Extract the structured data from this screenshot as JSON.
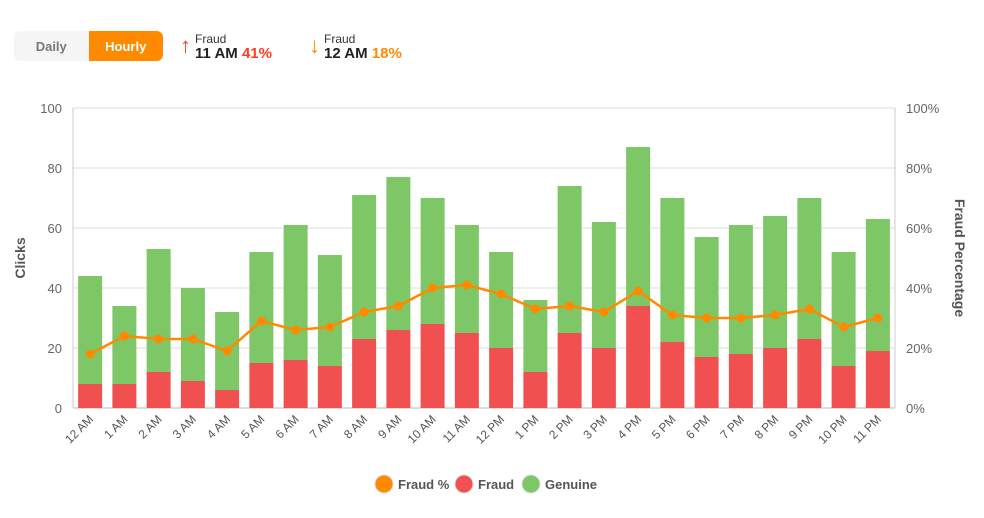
{
  "toggle": {
    "daily": "Daily",
    "hourly": "Hourly",
    "active": "hourly"
  },
  "stats": [
    {
      "icon": "arrow-up-icon",
      "label": "Fraud",
      "time": "11 AM",
      "value": "41%",
      "color": "#ff3b1f"
    },
    {
      "icon": "arrow-down-icon",
      "label": "Fraud",
      "time": "12 AM",
      "value": "18%",
      "color": "#ff8a00"
    }
  ],
  "chart_data": {
    "type": "bar",
    "stacked": true,
    "categories": [
      "12 AM",
      "1 AM",
      "2 AM",
      "3 AM",
      "4 AM",
      "5 AM",
      "6 AM",
      "7 AM",
      "8 AM",
      "9 AM",
      "10 AM",
      "11 AM",
      "12 PM",
      "1 PM",
      "2 PM",
      "3 PM",
      "4 PM",
      "5 PM",
      "6 PM",
      "7 PM",
      "8 PM",
      "9 PM",
      "10 PM",
      "11 PM"
    ],
    "series": [
      {
        "name": "Fraud",
        "type": "bar",
        "axis": "left",
        "color": "#f05050",
        "values": [
          8,
          8,
          12,
          9,
          6,
          15,
          16,
          14,
          23,
          26,
          28,
          25,
          20,
          12,
          25,
          20,
          34,
          22,
          17,
          18,
          20,
          23,
          14,
          19
        ]
      },
      {
        "name": "Genuine",
        "type": "bar",
        "axis": "left",
        "color": "#7dc767",
        "values": [
          36,
          26,
          41,
          31,
          26,
          37,
          45,
          37,
          48,
          51,
          42,
          36,
          32,
          24,
          49,
          42,
          53,
          48,
          40,
          43,
          44,
          47,
          38,
          44
        ]
      },
      {
        "name": "Fraud %",
        "type": "line",
        "axis": "right",
        "color": "#ff8a00",
        "values": [
          18,
          24,
          23,
          23,
          19,
          29,
          26,
          27,
          32,
          34,
          40,
          41,
          38,
          33,
          34,
          32,
          39,
          31,
          30,
          30,
          31,
          33,
          27,
          30
        ]
      }
    ],
    "ylabel": "Clicks",
    "ylabel_right": "Fraud Percentage",
    "ylim": [
      0,
      100
    ],
    "yticks": [
      "0",
      "20",
      "40",
      "60",
      "80",
      "100"
    ],
    "ylim_right": [
      0,
      100
    ],
    "yticks_right": [
      "0%",
      "20%",
      "40%",
      "60%",
      "80%",
      "100%"
    ],
    "grid": true,
    "legend": "bottom",
    "legend_order": [
      "Fraud %",
      "Fraud",
      "Genuine"
    ]
  }
}
